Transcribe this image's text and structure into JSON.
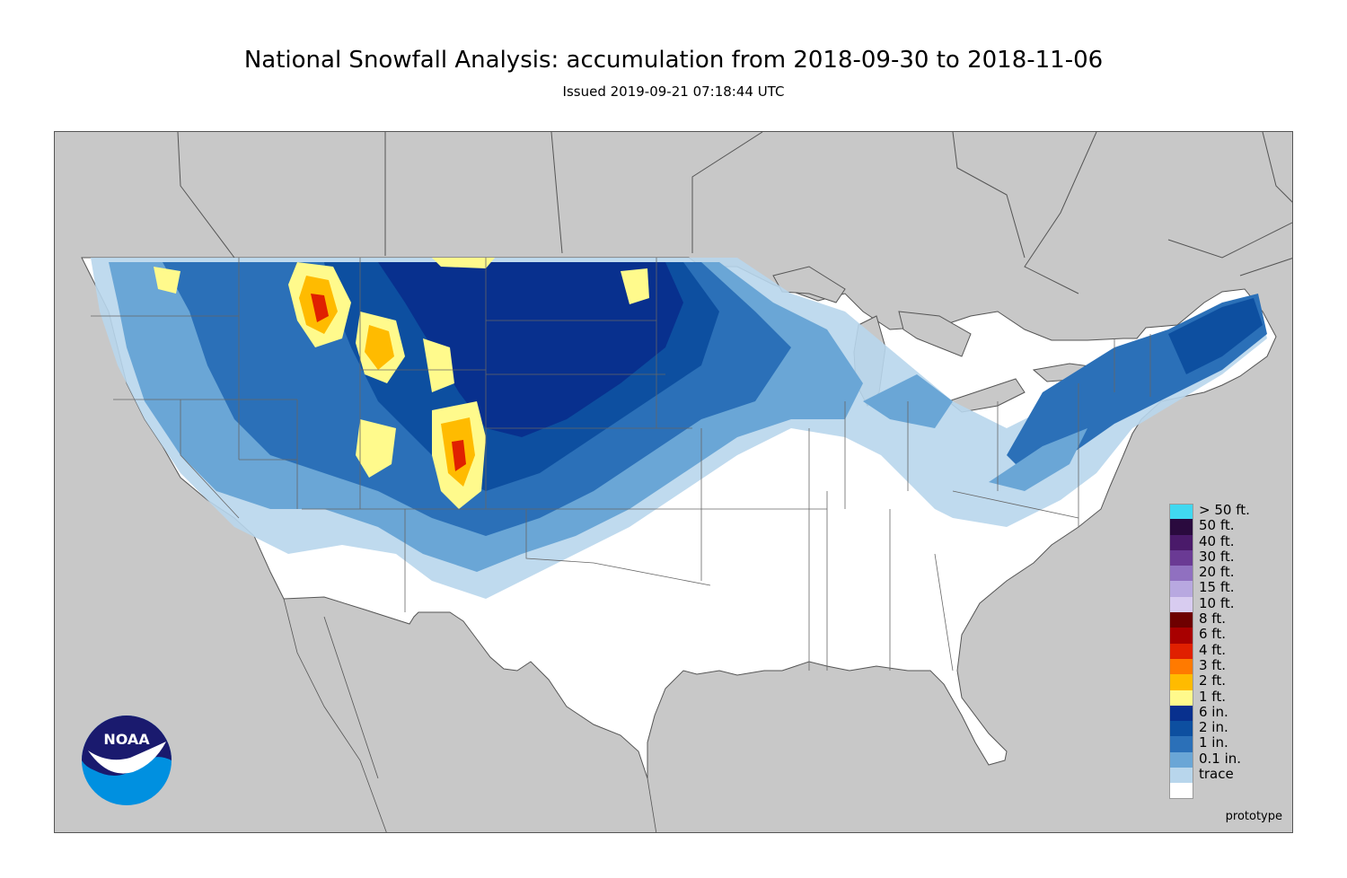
{
  "title": "National Snowfall Analysis: accumulation from 2018-09-30 to 2018-11-06",
  "subtitle": "Issued 2019-09-21 07:18:44 UTC",
  "footnote": "prototype",
  "logo": {
    "text": "NOAA",
    "icon": "noaa-logo-icon",
    "colors": {
      "dark": "#1a1a6e",
      "light": "#0090e0"
    }
  },
  "map": {
    "background_color": "#c8c8c8",
    "land_color": "#ffffff",
    "region": "Contiguous United States"
  },
  "legend": {
    "items": [
      {
        "label": "> 50 ft.",
        "color": "#40d8f0"
      },
      {
        "label": "50 ft.",
        "color": "#2a0a3e"
      },
      {
        "label": "40 ft.",
        "color": "#4a1a6a"
      },
      {
        "label": "30 ft.",
        "color": "#6a3a94"
      },
      {
        "label": "20 ft.",
        "color": "#9070c0"
      },
      {
        "label": "15 ft.",
        "color": "#b8a8e0"
      },
      {
        "label": "10 ft.",
        "color": "#d8ccf0"
      },
      {
        "label": "8 ft.",
        "color": "#6e0000"
      },
      {
        "label": "6 ft.",
        "color": "#a80000"
      },
      {
        "label": "4 ft.",
        "color": "#e02000"
      },
      {
        "label": "3 ft.",
        "color": "#ff7a00"
      },
      {
        "label": "2 ft.",
        "color": "#ffbb00"
      },
      {
        "label": "1 ft.",
        "color": "#fffa8c"
      },
      {
        "label": "6 in.",
        "color": "#08308e"
      },
      {
        "label": "2 in.",
        "color": "#0d4fa0"
      },
      {
        "label": "1 in.",
        "color": "#2b70b8"
      },
      {
        "label": "0.1 in.",
        "color": "#6aa6d6"
      },
      {
        "label": "trace",
        "color": "#b8d6ec"
      },
      {
        "label": "",
        "color": "#ffffff"
      }
    ]
  }
}
